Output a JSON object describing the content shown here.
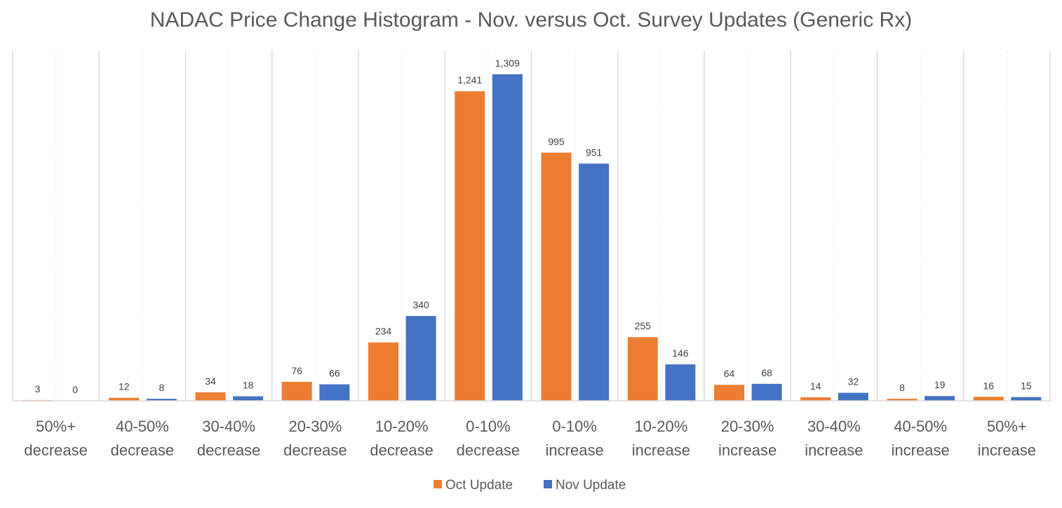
{
  "chart_data": {
    "type": "bar",
    "title": "NADAC Price Change Histogram - Nov. versus Oct. Survey Updates (Generic Rx)",
    "xlabel": "",
    "ylabel": "",
    "ylim": [
      0,
      1309
    ],
    "grid": "vertical category separators",
    "legend_position": "bottom",
    "categories": [
      [
        "50%+",
        "decrease"
      ],
      [
        "40-50%",
        "decrease"
      ],
      [
        "30-40%",
        "decrease"
      ],
      [
        "20-30%",
        "decrease"
      ],
      [
        "10-20%",
        "decrease"
      ],
      [
        "0-10%",
        "decrease"
      ],
      [
        "0-10%",
        "increase"
      ],
      [
        "10-20%",
        "increase"
      ],
      [
        "20-30%",
        "increase"
      ],
      [
        "30-40%",
        "increase"
      ],
      [
        "40-50%",
        "increase"
      ],
      [
        "50%+",
        "increase"
      ]
    ],
    "series": [
      {
        "name": "Oct Update",
        "color": "#ed7d31",
        "values": [
          3,
          12,
          34,
          76,
          234,
          1241,
          995,
          255,
          64,
          14,
          8,
          16
        ],
        "labels": [
          "3",
          "12",
          "34",
          "76",
          "234",
          "1,241",
          "995",
          "255",
          "64",
          "14",
          "8",
          "16"
        ]
      },
      {
        "name": "Nov Update",
        "color": "#4472c4",
        "values": [
          0,
          8,
          18,
          66,
          340,
          1309,
          951,
          146,
          68,
          32,
          19,
          15
        ],
        "labels": [
          "0",
          "8",
          "18",
          "66",
          "340",
          "1,309",
          "951",
          "146",
          "68",
          "32",
          "19",
          "15"
        ]
      }
    ]
  }
}
